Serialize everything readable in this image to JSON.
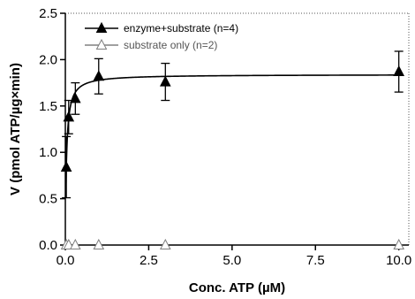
{
  "chart_data": {
    "type": "scatter",
    "title": "",
    "xlabel": "Conc. ATP (µM)",
    "ylabel": "V (pmol ATP/µg×min)",
    "xlim": [
      0,
      10.3
    ],
    "ylim": [
      0,
      2.5
    ],
    "x_ticks": [
      "0.0",
      "2.5",
      "5.0",
      "7.5",
      "10.0"
    ],
    "x_tick_values": [
      0,
      2.5,
      5,
      7.5,
      10
    ],
    "y_ticks": [
      "0.0",
      "0.5",
      "1.0",
      "1.5",
      "2.0",
      "2.5"
    ],
    "y_tick_values": [
      0,
      0.5,
      1,
      1.5,
      2,
      2.5
    ],
    "legend_position": "top-left",
    "series": [
      {
        "name": "enzyme+substrate (n=4)",
        "marker": "filled-triangle",
        "color": "#000000",
        "x": [
          0.03,
          0.1,
          0.3,
          1,
          3,
          10
        ],
        "y": [
          0.84,
          1.38,
          1.58,
          1.82,
          1.76,
          1.87
        ],
        "error": [
          0.33,
          0.18,
          0.17,
          0.19,
          0.2,
          0.22
        ],
        "fit": {
          "model": "Michaelis-Menten",
          "vmax": 1.84,
          "km": 0.035
        }
      },
      {
        "name": "substrate only (n=2)",
        "marker": "open-triangle",
        "color": "#808080",
        "x": [
          0.03,
          0.1,
          0.3,
          1,
          3,
          10
        ],
        "y": [
          0,
          0,
          0,
          0,
          0,
          0
        ]
      }
    ]
  }
}
